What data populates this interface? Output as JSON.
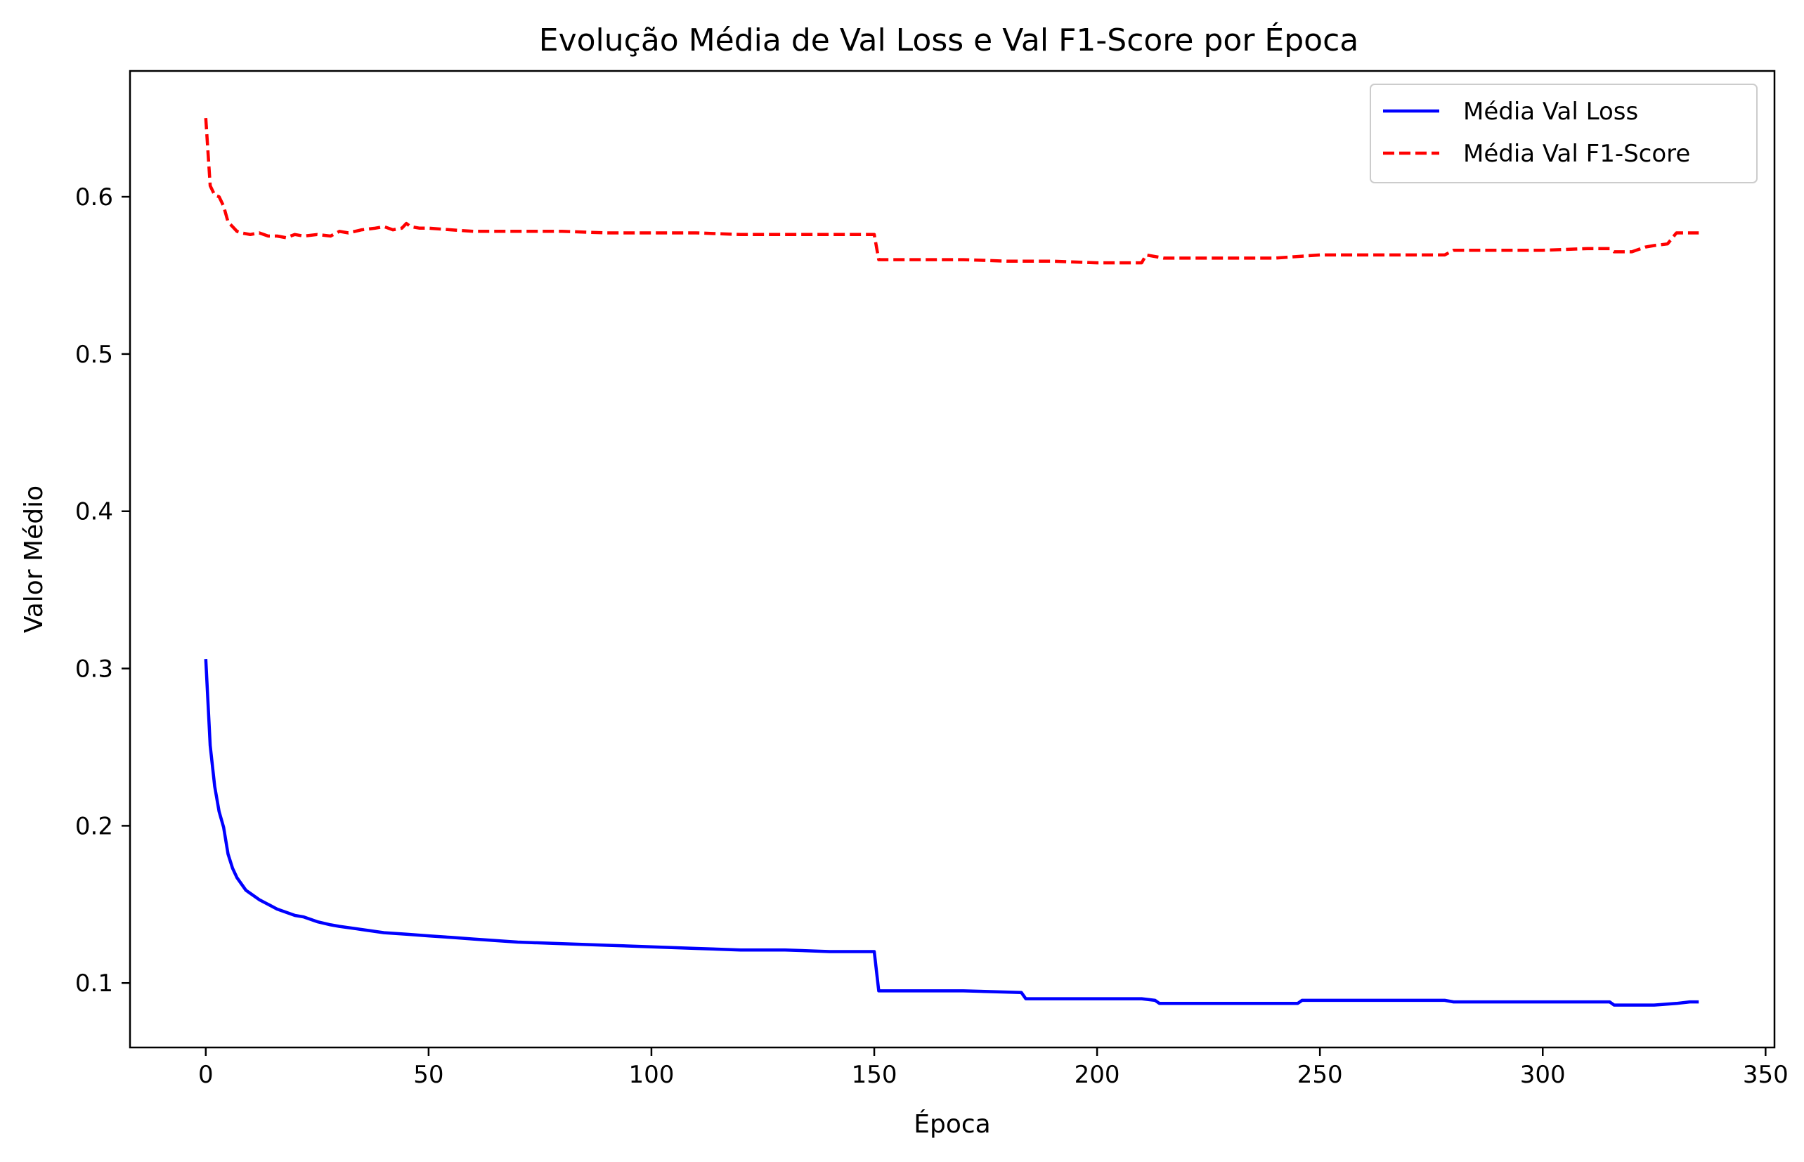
{
  "chart_data": {
    "type": "line",
    "title": "Evolução Média de Val Loss e Val F1-Score por Época",
    "xlabel": "Época",
    "ylabel": "Valor Médio",
    "xlim": [
      -17,
      352
    ],
    "ylim": [
      0.059,
      0.68
    ],
    "xticks": [
      0,
      50,
      100,
      150,
      200,
      250,
      300,
      350
    ],
    "xtick_labels": [
      "0",
      "50",
      "100",
      "150",
      "200",
      "250",
      "300",
      "350"
    ],
    "yticks": [
      0.1,
      0.2,
      0.3,
      0.4,
      0.5,
      0.6
    ],
    "ytick_labels": [
      "0.1",
      "0.2",
      "0.3",
      "0.4",
      "0.5",
      "0.6"
    ],
    "grid": false,
    "legend": "top-right",
    "series": [
      {
        "name": "Média Val Loss",
        "color": "#0000ff",
        "style": "solid",
        "x": [
          0,
          1,
          2,
          3,
          4,
          5,
          6,
          7,
          8,
          9,
          10,
          12,
          14,
          16,
          18,
          20,
          22,
          25,
          28,
          30,
          35,
          40,
          45,
          50,
          55,
          60,
          70,
          80,
          90,
          100,
          110,
          120,
          130,
          140,
          150,
          151,
          160,
          170,
          183,
          184,
          190,
          200,
          210,
          213,
          214,
          220,
          230,
          240,
          245,
          246,
          250,
          260,
          270,
          278,
          280,
          290,
          300,
          310,
          315,
          316,
          320,
          325,
          330,
          333,
          335
        ],
        "y": [
          0.306,
          0.251,
          0.225,
          0.209,
          0.199,
          0.182,
          0.173,
          0.167,
          0.163,
          0.159,
          0.157,
          0.153,
          0.15,
          0.147,
          0.145,
          0.143,
          0.142,
          0.139,
          0.137,
          0.136,
          0.134,
          0.132,
          0.131,
          0.13,
          0.129,
          0.128,
          0.126,
          0.125,
          0.124,
          0.123,
          0.122,
          0.121,
          0.121,
          0.12,
          0.12,
          0.095,
          0.095,
          0.095,
          0.094,
          0.09,
          0.09,
          0.09,
          0.09,
          0.089,
          0.087,
          0.087,
          0.087,
          0.087,
          0.087,
          0.089,
          0.089,
          0.089,
          0.089,
          0.089,
          0.088,
          0.088,
          0.088,
          0.088,
          0.088,
          0.086,
          0.086,
          0.086,
          0.087,
          0.088,
          0.088
        ]
      },
      {
        "name": "Média Val F1-Score",
        "color": "#ff0000",
        "style": "dashed",
        "x": [
          0,
          1,
          2,
          3,
          4,
          5,
          6,
          7,
          8,
          10,
          12,
          14,
          16,
          18,
          20,
          22,
          25,
          28,
          30,
          32,
          35,
          38,
          40,
          42,
          44,
          45,
          46,
          48,
          50,
          55,
          60,
          70,
          80,
          90,
          100,
          110,
          120,
          130,
          140,
          150,
          151,
          160,
          170,
          180,
          190,
          200,
          210,
          211,
          215,
          220,
          230,
          240,
          245,
          250,
          260,
          270,
          278,
          280,
          290,
          300,
          310,
          315,
          316,
          320,
          323,
          325,
          328,
          330,
          335
        ],
        "y": [
          0.65,
          0.607,
          0.601,
          0.6,
          0.594,
          0.584,
          0.581,
          0.578,
          0.577,
          0.576,
          0.577,
          0.575,
          0.575,
          0.574,
          0.576,
          0.575,
          0.576,
          0.575,
          0.578,
          0.577,
          0.579,
          0.58,
          0.581,
          0.579,
          0.58,
          0.583,
          0.581,
          0.58,
          0.58,
          0.579,
          0.578,
          0.578,
          0.578,
          0.577,
          0.577,
          0.577,
          0.576,
          0.576,
          0.576,
          0.576,
          0.56,
          0.56,
          0.56,
          0.559,
          0.559,
          0.558,
          0.558,
          0.563,
          0.561,
          0.561,
          0.561,
          0.561,
          0.562,
          0.563,
          0.563,
          0.563,
          0.563,
          0.566,
          0.566,
          0.566,
          0.567,
          0.567,
          0.565,
          0.565,
          0.568,
          0.569,
          0.57,
          0.577,
          0.577
        ]
      }
    ]
  }
}
